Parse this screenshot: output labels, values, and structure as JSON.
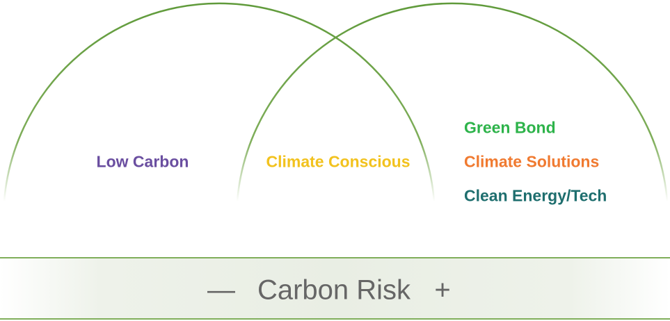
{
  "regions": [
    {
      "labels": [
        "Low Carbon"
      ]
    },
    {
      "labels": [
        "Climate Conscious"
      ]
    },
    {
      "labels": [
        "Green Bond",
        "Climate Solutions",
        "Clean Energy/Tech"
      ]
    }
  ],
  "axis": {
    "minus": "—",
    "label": "Carbon Risk",
    "plus": "+"
  }
}
